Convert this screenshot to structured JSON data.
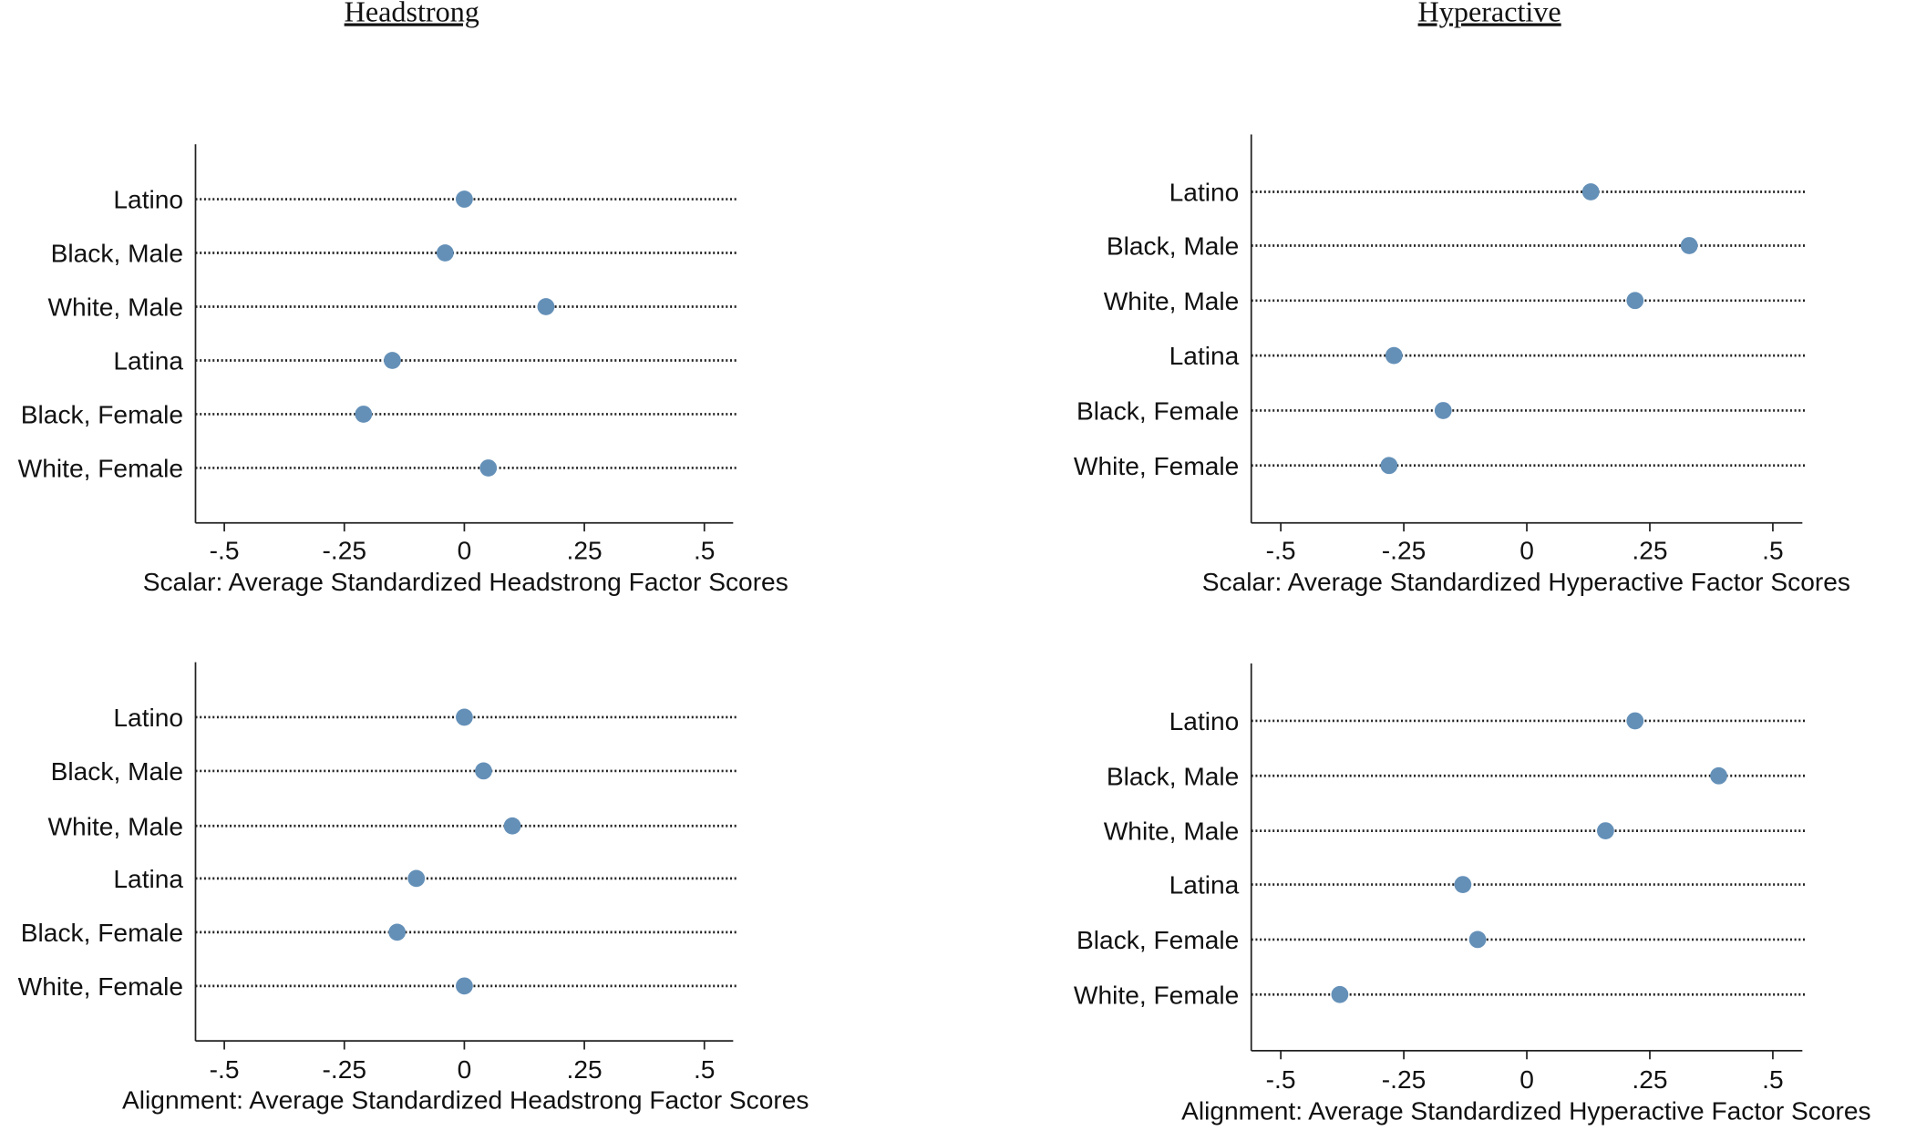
{
  "headings": [
    "Headstrong",
    "Hyperactive"
  ],
  "chart_data": [
    {
      "type": "dot",
      "x_label": "Scalar: Average Standardized Headstrong Factor Scores",
      "categories": [
        "Latino",
        "Black, Male",
        "White, Male",
        "Latina",
        "Black, Female",
        "White, Female"
      ],
      "values": [
        0.0,
        -0.04,
        0.17,
        -0.15,
        -0.21,
        0.05
      ],
      "color": "#6490b8",
      "xlim": [
        -0.56,
        0.56
      ],
      "xticks": [
        {
          "value": -0.5,
          "label": "-.5"
        },
        {
          "value": -0.25,
          "label": "-.25"
        },
        0,
        {
          "value": 0.25,
          "label": ".25"
        },
        {
          "value": 0.5,
          "label": ".5"
        }
      ]
    },
    {
      "type": "dot",
      "x_label": "Scalar: Average Standardized Hyperactive Factor Scores",
      "categories": [
        "Latino",
        "Black, Male",
        "White, Male",
        "Latina",
        "Black, Female",
        "White, Female"
      ],
      "values": [
        0.13,
        0.33,
        0.22,
        -0.27,
        -0.17,
        -0.28
      ],
      "color": "#6490b8",
      "xlim": [
        -0.56,
        0.56
      ],
      "xticks": [
        {
          "value": -0.5,
          "label": "-.5"
        },
        {
          "value": -0.25,
          "label": "-.25"
        },
        0,
        {
          "value": 0.25,
          "label": ".25"
        },
        {
          "value": 0.5,
          "label": ".5"
        }
      ]
    },
    {
      "type": "dot",
      "x_label": "Alignment: Average Standardized Headstrong Factor Scores",
      "categories": [
        "Latino",
        "Black, Male",
        "White, Male",
        "Latina",
        "Black, Female",
        "White, Female"
      ],
      "values": [
        0.0,
        0.04,
        0.1,
        -0.1,
        -0.14,
        0.0
      ],
      "color": "#6490b8",
      "xlim": [
        -0.56,
        0.56
      ],
      "xticks": [
        {
          "value": -0.5,
          "label": "-.5"
        },
        {
          "value": -0.25,
          "label": "-.25"
        },
        0,
        {
          "value": 0.25,
          "label": ".25"
        },
        {
          "value": 0.5,
          "label": ".5"
        }
      ]
    },
    {
      "type": "dot",
      "x_label": "Alignment: Average Standardized Hyperactive Factor Scores",
      "categories": [
        "Latino",
        "Black, Male",
        "White, Male",
        "Latina",
        "Black, Female",
        "White, Female"
      ],
      "values": [
        0.22,
        0.39,
        0.16,
        -0.13,
        -0.1,
        -0.38
      ],
      "color": "#6490b8",
      "xlim": [
        -0.56,
        0.56
      ],
      "xticks": [
        {
          "value": -0.5,
          "label": "-.5"
        },
        {
          "value": -0.25,
          "label": "-.25"
        },
        0,
        {
          "value": 0.25,
          "label": ".25"
        },
        {
          "value": 0.5,
          "label": ".5"
        }
      ]
    }
  ]
}
